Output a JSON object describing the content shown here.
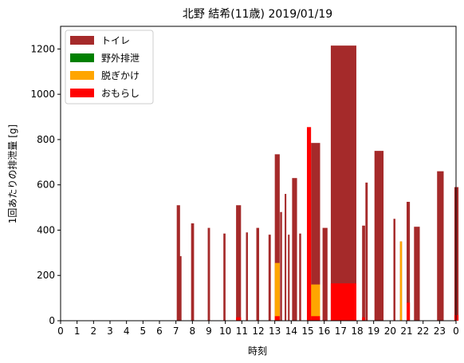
{
  "chart_data": {
    "type": "bar",
    "title": "北野 結希(11歳) 2019/01/19",
    "xlabel": "時刻",
    "ylabel": "1回あたりの排泄量 [g]",
    "xlim": [
      0,
      24
    ],
    "ylim": [
      0,
      1300
    ],
    "xticks": [
      0,
      1,
      2,
      3,
      4,
      5,
      6,
      7,
      8,
      9,
      10,
      11,
      12,
      13,
      14,
      15,
      16,
      17,
      18,
      19,
      20,
      21,
      22,
      23,
      24
    ],
    "xtick_labels": [
      "0",
      "1",
      "2",
      "3",
      "4",
      "5",
      "6",
      "7",
      "8",
      "9",
      "10",
      "11",
      "12",
      "13",
      "14",
      "15",
      "16",
      "17",
      "18",
      "19",
      "20",
      "21",
      "22",
      "23",
      "0"
    ],
    "yticks": [
      0,
      200,
      400,
      600,
      800,
      1000,
      1200
    ],
    "legend_position": "upper-left",
    "grid": false,
    "series": [
      {
        "name": "トイレ",
        "color": "#a52a2a",
        "bars": [
          {
            "x": 7.05,
            "w": 0.2,
            "v": 510
          },
          {
            "x": 7.22,
            "w": 0.12,
            "v": 285
          },
          {
            "x": 7.92,
            "w": 0.18,
            "v": 430
          },
          {
            "x": 8.93,
            "w": 0.14,
            "v": 410
          },
          {
            "x": 9.88,
            "w": 0.13,
            "v": 385
          },
          {
            "x": 10.65,
            "w": 0.3,
            "v": 510
          },
          {
            "x": 11.25,
            "w": 0.12,
            "v": 390
          },
          {
            "x": 11.88,
            "w": 0.17,
            "v": 410
          },
          {
            "x": 12.62,
            "w": 0.14,
            "v": 380
          },
          {
            "x": 13.0,
            "w": 0.3,
            "v": 735
          },
          {
            "x": 13.32,
            "w": 0.12,
            "v": 480
          },
          {
            "x": 13.6,
            "w": 0.1,
            "v": 560
          },
          {
            "x": 13.8,
            "w": 0.1,
            "v": 380
          },
          {
            "x": 14.05,
            "w": 0.3,
            "v": 630
          },
          {
            "x": 14.48,
            "w": 0.12,
            "v": 385
          },
          {
            "x": 15.2,
            "w": 0.55,
            "v": 785
          },
          {
            "x": 15.9,
            "w": 0.3,
            "v": 410
          },
          {
            "x": 16.4,
            "w": 1.55,
            "v": 1215
          },
          {
            "x": 18.3,
            "w": 0.18,
            "v": 420
          },
          {
            "x": 18.5,
            "w": 0.14,
            "v": 610
          },
          {
            "x": 19.05,
            "w": 0.55,
            "v": 750
          },
          {
            "x": 20.2,
            "w": 0.12,
            "v": 450
          },
          {
            "x": 20.6,
            "w": 0.12,
            "v": 350
          },
          {
            "x": 21.0,
            "w": 0.2,
            "v": 525
          },
          {
            "x": 21.45,
            "w": 0.35,
            "v": 415
          },
          {
            "x": 22.85,
            "w": 0.4,
            "v": 660
          },
          {
            "x": 23.9,
            "w": 0.25,
            "v": 590
          }
        ]
      },
      {
        "name": "野外排泄",
        "color": "#008000",
        "bars": []
      },
      {
        "name": "脱ぎかけ",
        "color": "#ffa500",
        "bars": [
          {
            "x": 13.0,
            "w": 0.3,
            "v": 255
          },
          {
            "x": 15.2,
            "w": 0.55,
            "v": 160
          },
          {
            "x": 20.6,
            "w": 0.12,
            "v": 350
          }
        ]
      },
      {
        "name": "おもらし",
        "color": "#ff0000",
        "bars": [
          {
            "x": 10.65,
            "w": 0.3,
            "v": 15
          },
          {
            "x": 13.0,
            "w": 0.3,
            "v": 20
          },
          {
            "x": 14.95,
            "w": 0.25,
            "v": 855
          },
          {
            "x": 15.2,
            "w": 0.55,
            "v": 20
          },
          {
            "x": 16.4,
            "w": 1.55,
            "v": 165
          },
          {
            "x": 18.3,
            "w": 0.18,
            "v": 15
          },
          {
            "x": 21.0,
            "w": 0.2,
            "v": 80
          },
          {
            "x": 23.9,
            "w": 0.25,
            "v": 25
          }
        ]
      }
    ]
  }
}
